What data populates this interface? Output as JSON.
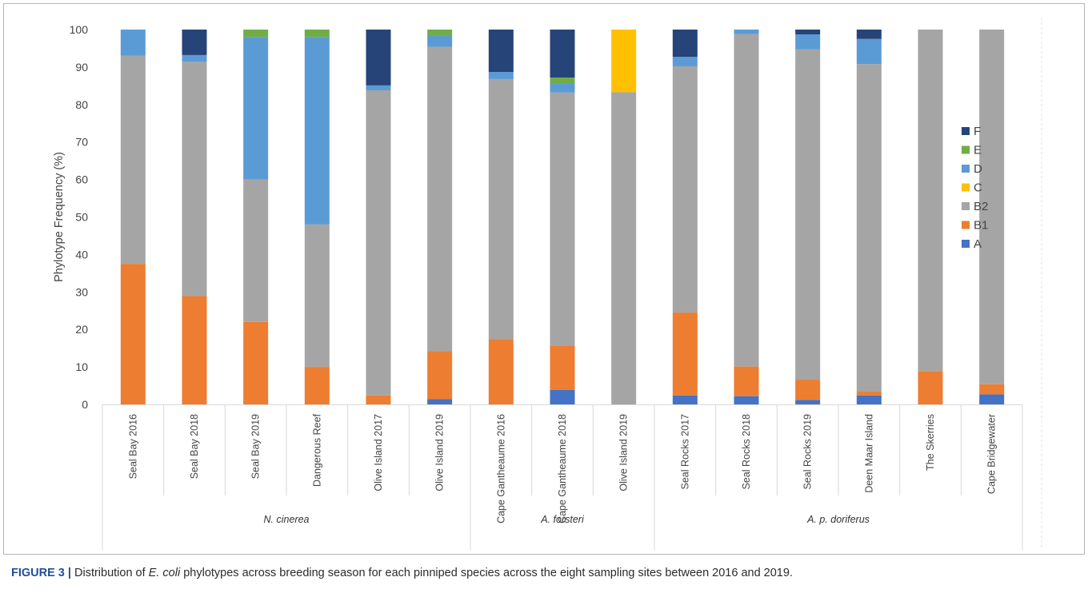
{
  "chart_data": {
    "type": "bar",
    "stacked": true,
    "ylabel": "Phylotype Frequency (%)",
    "ylim": [
      0,
      100
    ],
    "yticks": [
      "0",
      "10",
      "20",
      "30",
      "40",
      "50",
      "60",
      "70",
      "80",
      "90",
      "100"
    ],
    "grid": false,
    "legend_position": "right",
    "categories": [
      "Seal Bay 2016",
      "Seal Bay 2018",
      "Seal Bay 2019",
      "Dangerous Reef",
      "Olive Island 2017",
      "Olive Island 2019",
      "Cape Gantheaume 2016",
      "Cape Gantheaume 2018",
      "Olive Island 2019",
      "Seal Rocks 2017",
      "Seal Rocks 2018",
      "Seal Rocks 2019",
      "Deen Maar Island",
      "The Skerries",
      "Cape Bridgewater"
    ],
    "groups": [
      {
        "label": "N. cinerea",
        "start": 0,
        "end": 5
      },
      {
        "label": "A. forsteri",
        "start": 6,
        "end": 8
      },
      {
        "label": "A. p. doriferus",
        "start": 9,
        "end": 14
      }
    ],
    "series": [
      {
        "name": "A",
        "color": "#4472c4",
        "values": [
          0,
          0,
          0,
          0,
          0,
          1.4,
          0,
          3.9,
          0,
          2.4,
          2.2,
          1.2,
          2.4,
          0,
          2.7
        ]
      },
      {
        "name": "B1",
        "color": "#ed7d31",
        "values": [
          37.5,
          28.9,
          22,
          10,
          2.4,
          12.8,
          17.4,
          11.8,
          0,
          22.1,
          7.9,
          5.4,
          1.0,
          8.9,
          2.7
        ]
      },
      {
        "name": "B2",
        "color": "#a5a5a5",
        "values": [
          55.5,
          62.5,
          38,
          38,
          81.4,
          81.2,
          69.4,
          67.5,
          83.3,
          65.7,
          88.7,
          88.1,
          87.4,
          91.1,
          94.6
        ]
      },
      {
        "name": "C",
        "color": "#ffc000",
        "values": [
          0,
          0,
          0,
          0,
          0,
          0,
          0,
          0,
          16.7,
          0,
          0,
          0,
          0,
          0,
          0
        ]
      },
      {
        "name": "D",
        "color": "#5b9bd5",
        "values": [
          7.0,
          1.8,
          38,
          50,
          1.3,
          2.9,
          1.9,
          2.4,
          0,
          2.5,
          1.2,
          4.0,
          6.7,
          0,
          0
        ]
      },
      {
        "name": "E",
        "color": "#70ad47",
        "values": [
          0,
          0,
          2,
          2,
          0,
          1.7,
          0,
          1.6,
          0,
          0,
          0,
          0,
          0,
          0,
          0
        ]
      },
      {
        "name": "F",
        "color": "#264478",
        "values": [
          0,
          6.8,
          0,
          0,
          14.9,
          0,
          11.3,
          12.8,
          0,
          7.3,
          0,
          1.3,
          2.5,
          0,
          0
        ]
      }
    ],
    "legend_order": [
      "F",
      "E",
      "D",
      "C",
      "B2",
      "B1",
      "A"
    ]
  },
  "caption": {
    "label": "FIGURE 3 |",
    "text_before": " Distribution of ",
    "italic": "E. coli",
    "text_after": " phylotypes across breeding season for each pinniped species across the eight sampling sites between 2016 and 2019."
  }
}
